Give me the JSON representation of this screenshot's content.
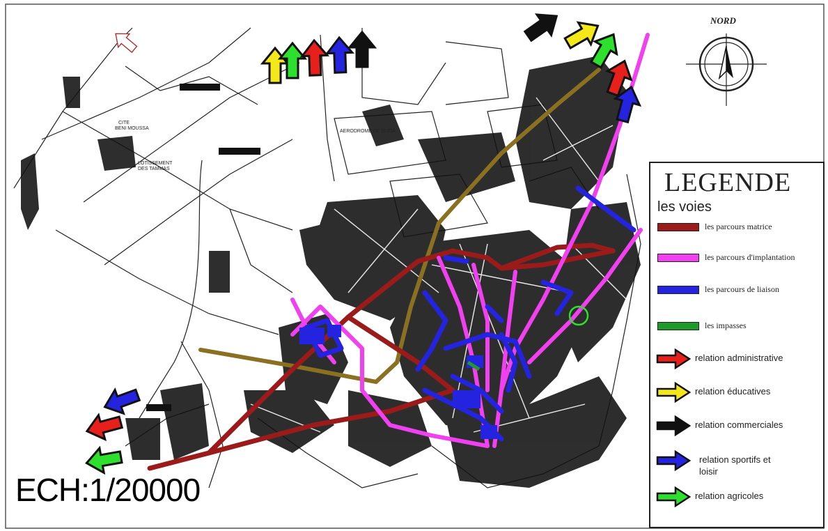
{
  "map": {
    "north_label": "NORD",
    "scale_text": "ECH:1/20000",
    "place_labels": [
      "AERODROME DE BLIDA",
      "CITE",
      "BENI MOUSSA",
      "LOTISSEMENT",
      "DES TAMMAS"
    ]
  },
  "legend": {
    "title": "LEGENDE",
    "subtitle": "les voies",
    "roads": [
      {
        "label": "les parcours matrice",
        "color": "#9b1b1b"
      },
      {
        "label": "les parcours d'implantation",
        "color": "#f040f0"
      },
      {
        "label": "les parcours de liaison",
        "color": "#2424e0"
      },
      {
        "label": "les impasses",
        "color": "#1e9a2a"
      }
    ],
    "relations": [
      {
        "label": "relation administrative",
        "color": "#e8201c",
        "label2": ""
      },
      {
        "label": "relation éducatives",
        "color": "#f5e81a",
        "label2": ""
      },
      {
        "label": "relation commerciales",
        "color": "#111111",
        "label2": ""
      },
      {
        "label": "relation sportifs et",
        "label2": "loisir",
        "color": "#2424e0"
      },
      {
        "label": "relation agricoles",
        "color": "#2ee02e",
        "label2": ""
      }
    ]
  },
  "colors": {
    "matrice": "#9b1b1b",
    "implantation": "#f040f0",
    "liaison": "#2424e0",
    "impasse": "#1e9a2a",
    "olive_road": "#8a7020"
  }
}
